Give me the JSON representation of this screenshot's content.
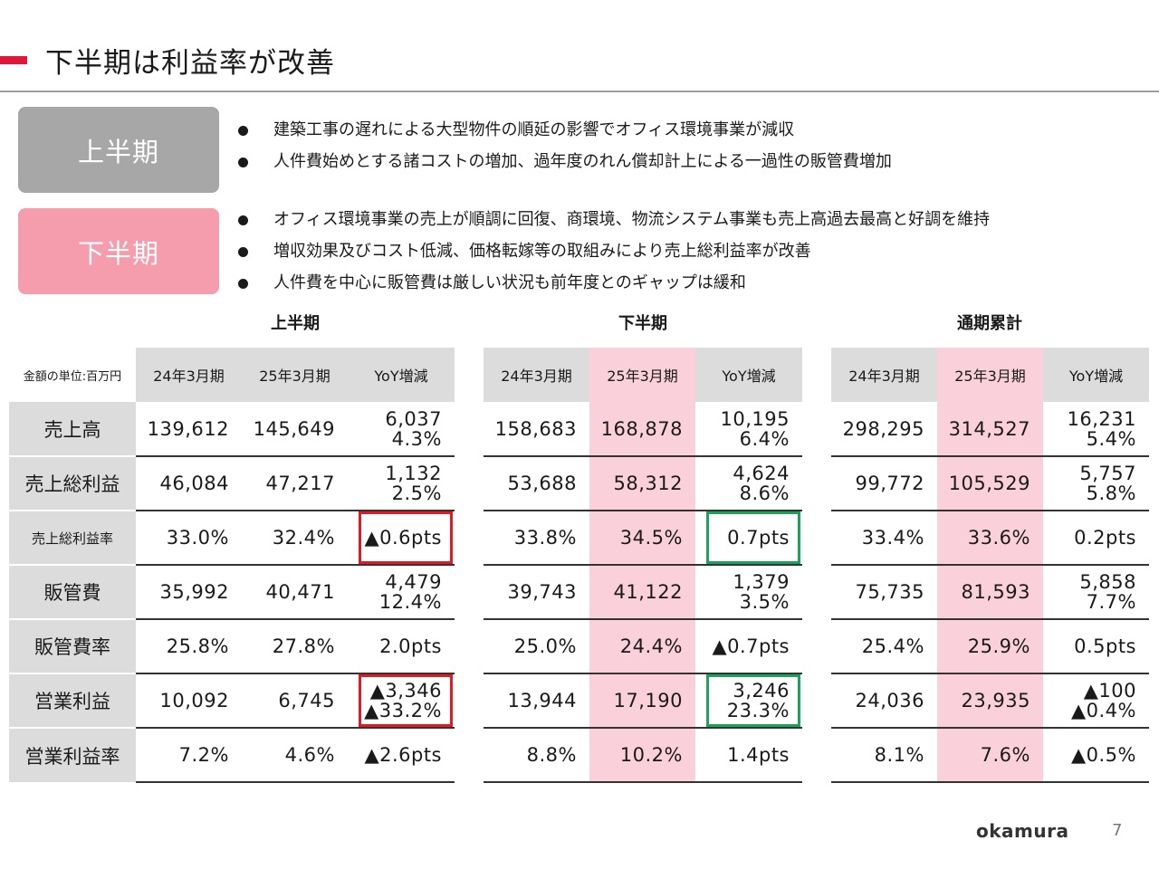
{
  "title": "下半期は利益率が改善",
  "periods": {
    "h1_label": "上半期",
    "h2_label": "下半期",
    "h1_bullets": [
      "建築工事の遅れによる大型物件の順延の影響でオフィス環境事業が減収",
      "人件費始めとする諸コストの増加、過年度のれん償却計上による一過性の販管費増加"
    ],
    "h2_bullets": [
      "オフィス環境事業の売上が順調に回復、商環境、物流システム事業も売上高過去最高と好調を維持",
      "増収効果及びコスト低減、価格転嫁等の取組みにより売上総利益率が改善",
      "人件費を中心に販管費は厳しい状況も前年度とのギャップは緩和"
    ]
  },
  "table": {
    "unit_label": "金額の単位:百万円",
    "sections": [
      "上半期",
      "下半期",
      "通期累計"
    ],
    "columns": [
      "24年3月期",
      "25年3月期",
      "YoY増減"
    ],
    "rows": [
      {
        "label": "売上高",
        "h1": [
          "139,612",
          "145,649",
          "6,037",
          "4.3%"
        ],
        "h2": [
          "158,683",
          "168,878",
          "10,195",
          "6.4%"
        ],
        "fy": [
          "298,295",
          "314,527",
          "16,231",
          "5.4%"
        ]
      },
      {
        "label": "売上総利益",
        "h1": [
          "46,084",
          "47,217",
          "1,132",
          "2.5%"
        ],
        "h2": [
          "53,688",
          "58,312",
          "4,624",
          "8.6%"
        ],
        "fy": [
          "99,772",
          "105,529",
          "5,757",
          "5.8%"
        ]
      },
      {
        "label": "売上総利益率",
        "h1": [
          "33.0%",
          "32.4%",
          "▲0.6pts"
        ],
        "h2": [
          "33.8%",
          "34.5%",
          "0.7pts"
        ],
        "fy": [
          "33.4%",
          "33.6%",
          "0.2pts"
        ]
      },
      {
        "label": "販管費",
        "h1": [
          "35,992",
          "40,471",
          "4,479",
          "12.4%"
        ],
        "h2": [
          "39,743",
          "41,122",
          "1,379",
          "3.5%"
        ],
        "fy": [
          "75,735",
          "81,593",
          "5,858",
          "7.7%"
        ]
      },
      {
        "label": "販管費率",
        "h1": [
          "25.8%",
          "27.8%",
          "2.0pts"
        ],
        "h2": [
          "25.0%",
          "24.4%",
          "▲0.7pts"
        ],
        "fy": [
          "25.4%",
          "25.9%",
          "0.5pts"
        ]
      },
      {
        "label": "営業利益",
        "h1": [
          "10,092",
          "6,745",
          "▲3,346",
          "▲33.2%"
        ],
        "h2": [
          "13,944",
          "17,190",
          "3,246",
          "23.3%"
        ],
        "fy": [
          "24,036",
          "23,935",
          "▲100",
          "▲0.4%"
        ]
      },
      {
        "label": "営業利益率",
        "h1": [
          "7.2%",
          "4.6%",
          "▲2.6pts"
        ],
        "h2": [
          "8.8%",
          "10.2%",
          "1.4pts"
        ],
        "fy": [
          "8.1%",
          "7.6%",
          "▲0.5%"
        ]
      }
    ],
    "highlight_colors": {
      "negative": "#e01a24",
      "positive": "#1aa35a"
    }
  },
  "footer": {
    "logo": "okamura",
    "page": "7"
  }
}
